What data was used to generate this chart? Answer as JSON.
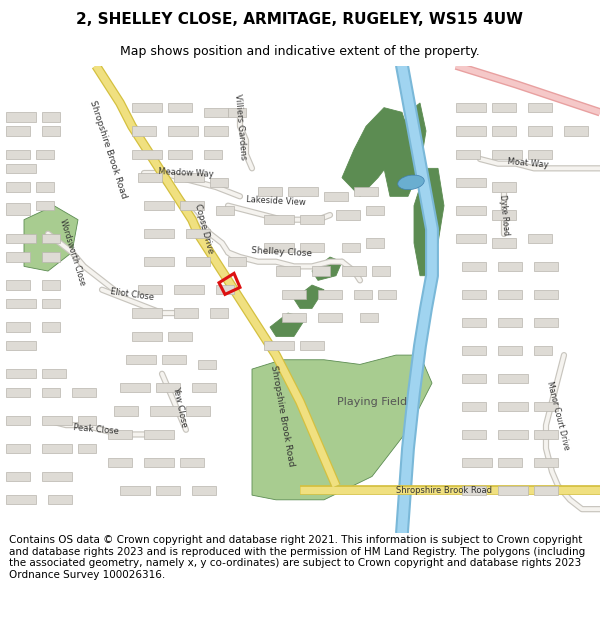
{
  "title": "2, SHELLEY CLOSE, ARMITAGE, RUGELEY, WS15 4UW",
  "subtitle": "Map shows position and indicative extent of the property.",
  "footer": "Contains OS data © Crown copyright and database right 2021. This information is subject to Crown copyright and database rights 2023 and is reproduced with the permission of HM Land Registry. The polygons (including the associated geometry, namely x, y co-ordinates) are subject to Crown copyright and database rights 2023 Ordnance Survey 100026316.",
  "map_bg": "#f5f3ef",
  "road_yellow": "#f0e080",
  "road_yellow_border": "#d4c040",
  "building_fill": "#dedbd5",
  "building_border": "#b8b5ae",
  "green_dark": "#5c8c52",
  "green_light": "#a8cc90",
  "blue_water": "#7ab8d8",
  "blue_pond": "#6aaed0",
  "pink_road_fill": "#f5c8c8",
  "pink_road_border": "#e8a0a0",
  "red_polygon_border": "#dd1111",
  "label_color": "#333333",
  "title_fontsize": 11,
  "subtitle_fontsize": 9,
  "footer_fontsize": 7.5,
  "label_fontsize": 6.5
}
